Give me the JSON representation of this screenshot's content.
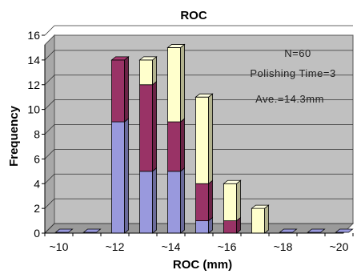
{
  "chart_data": {
    "type": "bar",
    "stacked": true,
    "title": "ROC",
    "xlabel": "ROC (mm)",
    "ylabel": "Frequency",
    "ylim": [
      0,
      16
    ],
    "yticks": [
      "0",
      "2",
      "4",
      "6",
      "8",
      "10",
      "12",
      "14",
      "16"
    ],
    "categories": [
      "~10",
      "~11",
      "~12",
      "~13",
      "~14",
      "~15",
      "~16",
      "~17",
      "~18",
      "~19",
      "~20"
    ],
    "x_tick_labels": [
      "~10",
      "~12",
      "~14",
      "~16",
      "~18",
      "~20"
    ],
    "series": [
      {
        "color": "#9999dd",
        "values": [
          0,
          0,
          9,
          5,
          5,
          1,
          0,
          0,
          0,
          0,
          0
        ]
      },
      {
        "color": "#993366",
        "values": [
          0,
          0,
          5,
          7,
          4,
          3,
          1,
          0,
          0,
          0,
          0
        ]
      },
      {
        "color": "#ffffcc",
        "values": [
          0,
          0,
          0,
          2,
          6,
          7,
          3,
          2,
          0,
          0,
          0
        ]
      }
    ],
    "annotations": [
      "N=60",
      "Polishing Time=3",
      "Ave.=14.3mm"
    ],
    "grid": true,
    "style": "3d",
    "wall_color": "#c0c0c0"
  }
}
